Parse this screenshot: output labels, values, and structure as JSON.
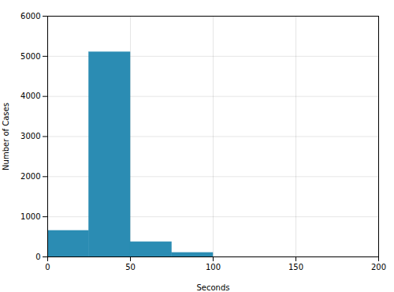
{
  "chart_data": {
    "type": "histogram",
    "bins": [
      0,
      25,
      50,
      75,
      100,
      125,
      150,
      175,
      200
    ],
    "values": [
      650,
      5100,
      370,
      100,
      0,
      0,
      0,
      0
    ],
    "color": "#2b8cb3",
    "xlabel": "Seconds",
    "ylabel": "Number of Cases",
    "xlim": [
      0,
      200
    ],
    "ylim": [
      0,
      6000
    ],
    "xticks": [
      0,
      50,
      100,
      150,
      200
    ],
    "yticks": [
      0,
      1000,
      2000,
      3000,
      4000,
      5000,
      6000
    ],
    "grid": true
  }
}
